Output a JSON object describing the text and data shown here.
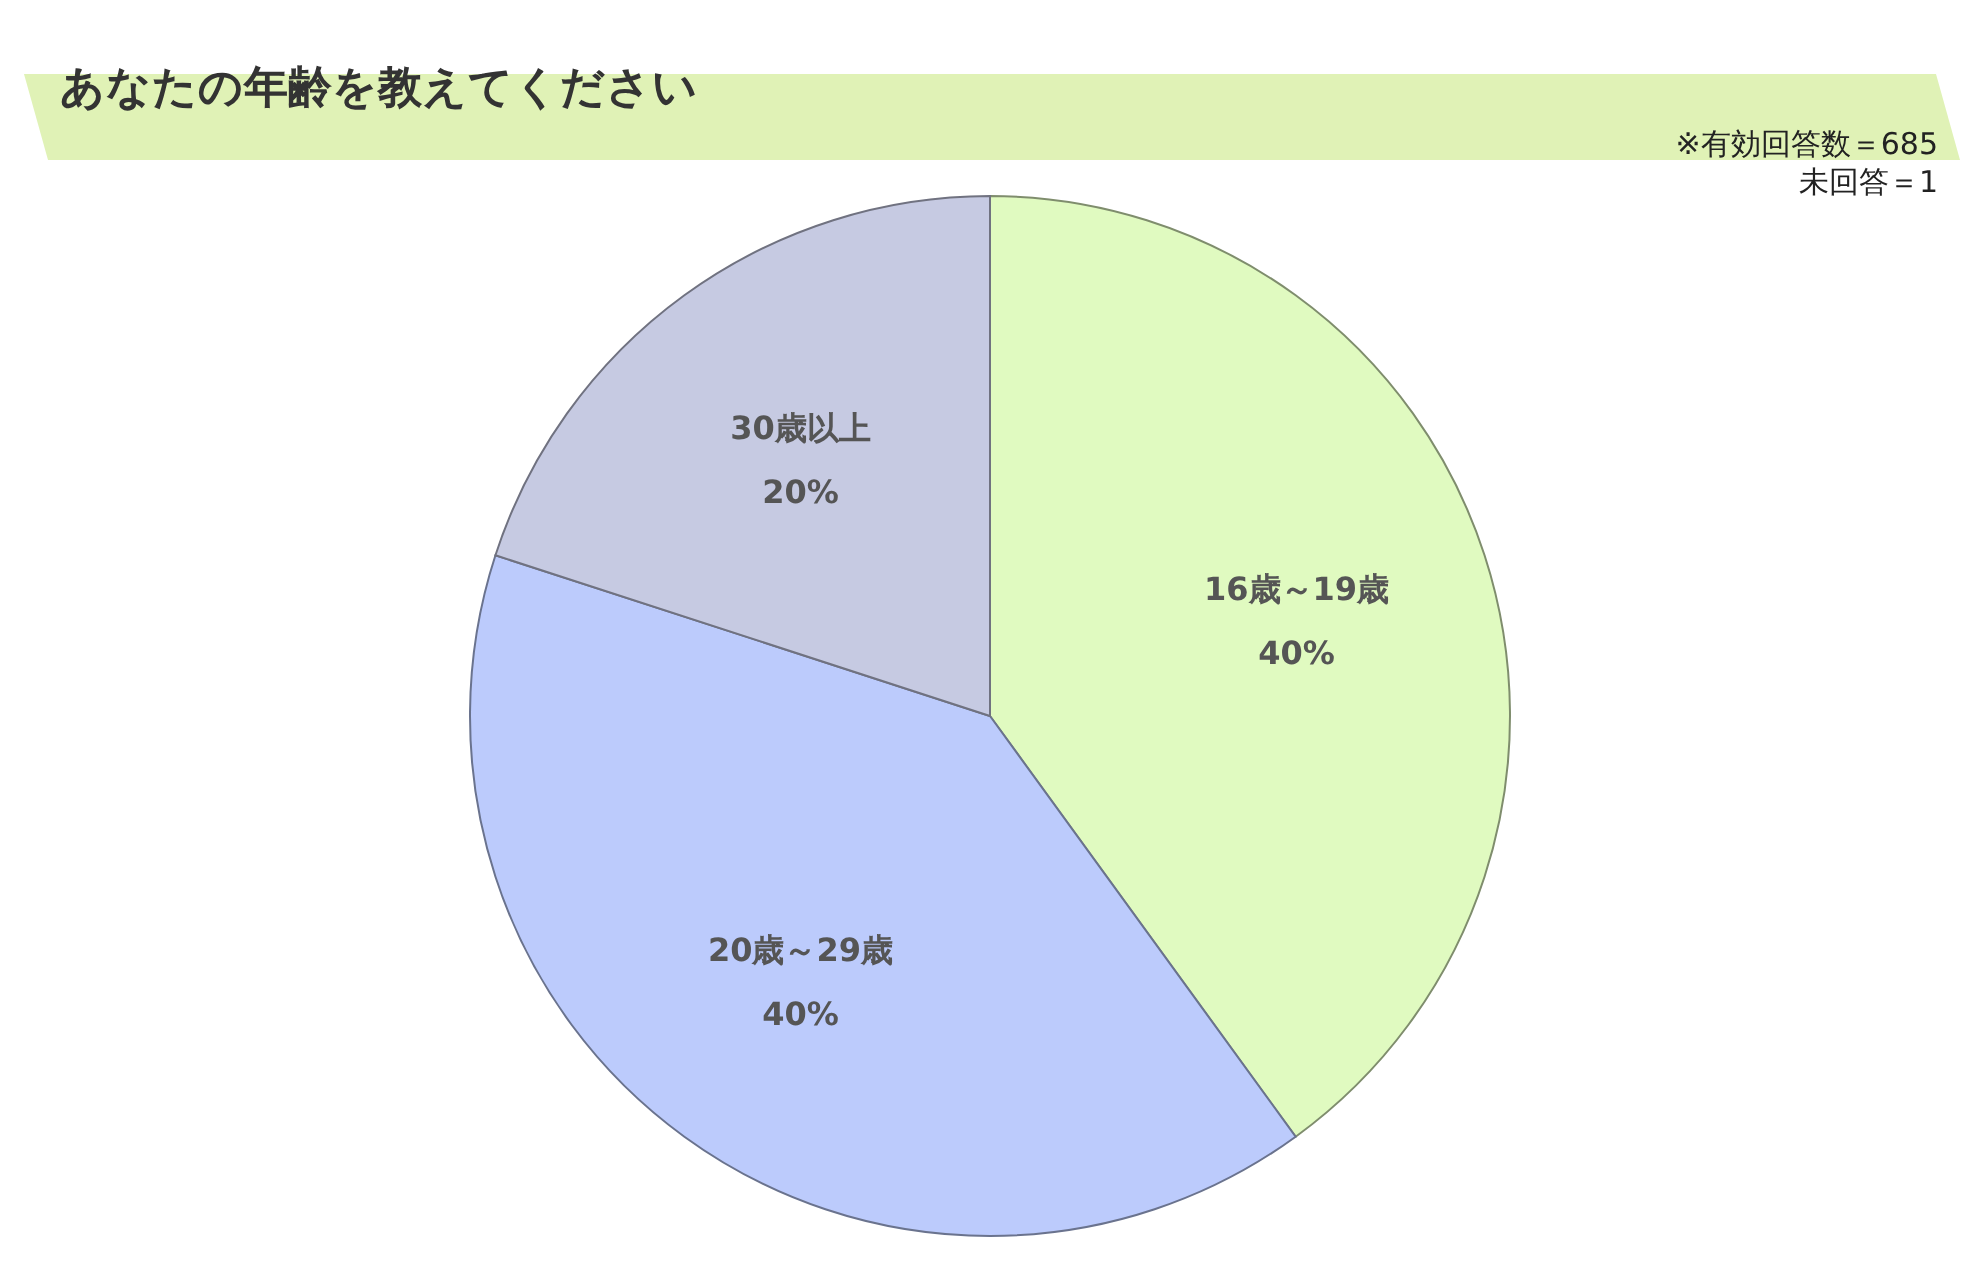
{
  "chart_data": {
    "type": "pie",
    "title": "あなたの年齢を教えてください",
    "categories": [
      "16歳～19歳",
      "20歳～29歳",
      "30歳以上"
    ],
    "values": [
      40,
      40,
      20
    ],
    "value_labels": [
      "40%",
      "40%",
      "20%"
    ],
    "colors": [
      "#e0fac0",
      "#bccbfc",
      "#c6cae2"
    ],
    "annotations": [
      "※有効回答数＝685",
      "未回答＝1"
    ]
  }
}
